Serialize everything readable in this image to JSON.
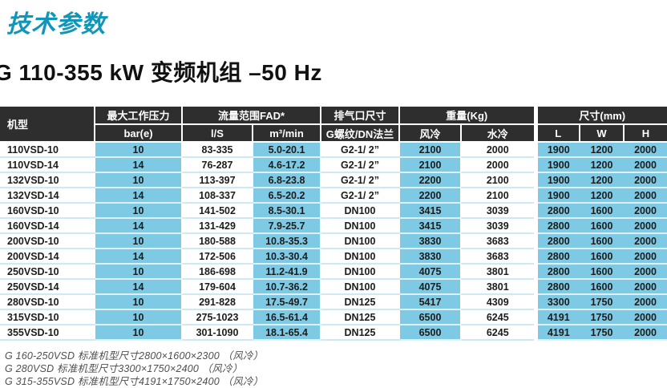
{
  "page": {
    "title": "技术参数",
    "subtitle": "G 110-355 kW 变频机组 –50 Hz"
  },
  "colors": {
    "accent_teal": "#1295b6",
    "header_bg": "#2e2e2e",
    "cell_blue": "#7ec9e3",
    "row_separator_light": "#cfe9f4"
  },
  "table": {
    "header": {
      "model": "机型",
      "pressure_group": "最大工作压力",
      "pressure_unit": "bar(e)",
      "flow_group": "流量范围FAD*",
      "flow_ls": "l/S",
      "flow_m3min": "m³/min",
      "outlet_group": "排气口尺寸",
      "outlet_unit": "G螺纹/DN法兰",
      "weight_group": "重量(Kg)",
      "weight_air": "风冷",
      "weight_water": "水冷",
      "dims_group": "尺寸(mm)",
      "dim_l": "L",
      "dim_w": "W",
      "dim_h": "H"
    },
    "rows": [
      [
        "110VSD-10",
        "10",
        "83-335",
        "5.0-20.1",
        "G2-1/ 2”",
        "2100",
        "2000",
        "1900",
        "1200",
        "2000"
      ],
      [
        "110VSD-14",
        "14",
        "76-287",
        "4.6-17.2",
        "G2-1/ 2”",
        "2100",
        "2000",
        "1900",
        "1200",
        "2000"
      ],
      [
        "132VSD-10",
        "10",
        "113-397",
        "6.8-23.8",
        "G2-1/ 2”",
        "2200",
        "2100",
        "1900",
        "1200",
        "2000"
      ],
      [
        "132VSD-14",
        "14",
        "108-337",
        "6.5-20.2",
        "G2-1/ 2”",
        "2200",
        "2100",
        "1900",
        "1200",
        "2000"
      ],
      [
        "160VSD-10",
        "10",
        "141-502",
        "8.5-30.1",
        "DN100",
        "3415",
        "3039",
        "2800",
        "1600",
        "2000"
      ],
      [
        "160VSD-14",
        "14",
        "131-429",
        "7.9-25.7",
        "DN100",
        "3415",
        "3039",
        "2800",
        "1600",
        "2000"
      ],
      [
        "200VSD-10",
        "10",
        "180-588",
        "10.8-35.3",
        "DN100",
        "3830",
        "3683",
        "2800",
        "1600",
        "2000"
      ],
      [
        "200VSD-14",
        "14",
        "172-506",
        "10.3-30.4",
        "DN100",
        "3830",
        "3683",
        "2800",
        "1600",
        "2000"
      ],
      [
        "250VSD-10",
        "10",
        "186-698",
        "11.2-41.9",
        "DN100",
        "4075",
        "3801",
        "2800",
        "1600",
        "2000"
      ],
      [
        "250VSD-14",
        "14",
        "179-604",
        "10.7-36.2",
        "DN100",
        "4075",
        "3801",
        "2800",
        "1600",
        "2000"
      ],
      [
        "280VSD-10",
        "10",
        "291-828",
        "17.5-49.7",
        "DN125",
        "5417",
        "4309",
        "3300",
        "1750",
        "2000"
      ],
      [
        "315VSD-10",
        "10",
        "275-1023",
        "16.5-61.4",
        "DN125",
        "6500",
        "6245",
        "4191",
        "1750",
        "2000"
      ],
      [
        "355VSD-10",
        "10",
        "301-1090",
        "18.1-65.4",
        "DN125",
        "6500",
        "6245",
        "4191",
        "1750",
        "2000"
      ]
    ]
  },
  "footnotes": [
    "G 160-250VSD 标准机型尺寸2800×1600×2300 （风冷）",
    "G 280VSD 标准机型尺寸3300×1750×2400 （风冷）",
    "G 315-355VSD 标准机型尺寸4191×1750×2400 （风冷）"
  ]
}
